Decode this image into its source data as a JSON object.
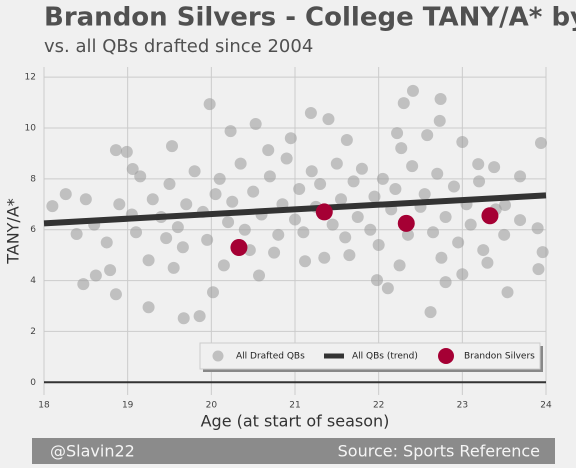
{
  "chart_data": {
    "type": "scatter",
    "title": "Brandon Silvers - College TANY/A* by Age",
    "subtitle": "vs. all QBs drafted since 2004",
    "x_label": "Age (at start of season)",
    "y_label": "TANY/A*",
    "credit": "@Slavin22",
    "source": "Source: Sports Reference",
    "xlim": [
      18,
      24
    ],
    "ylim": [
      -0.5,
      12.4
    ],
    "xticks": [
      18,
      19,
      20,
      21,
      22,
      23,
      24
    ],
    "yticks": [
      0,
      2,
      4,
      6,
      8,
      10,
      12
    ],
    "grid": true,
    "legend": "lower right",
    "series": [
      {
        "name": "All Drafted QBs",
        "type": "scatter",
        "color": "#999999",
        "x": [
          18.86,
          18.99,
          19.98,
          21.19,
          21.4,
          22.41,
          22.3,
          22.74,
          22.22,
          22.73,
          23.94,
          22.62,
          23.54,
          19.67,
          19.86,
          19.25,
          18.47,
          18.62,
          18.86,
          18.79,
          19.46,
          19.66,
          20.02,
          20.46,
          20.57,
          21.12,
          21.98,
          22.11,
          22.8,
          23.0,
          23.91,
          23.96,
          18.39,
          18.1,
          18.26,
          19.06,
          19.53,
          20.23,
          20.53,
          20.68,
          20.95,
          21.62,
          22.27,
          22.58,
          23.0,
          23.19,
          23.38,
          23.69,
          23.9,
          23.69,
          23.51,
          19.3,
          19.4,
          19.5,
          19.6,
          19.7,
          19.8,
          19.9,
          19.95,
          20.05,
          20.1,
          20.2,
          20.25,
          20.35,
          20.4,
          20.5,
          20.6,
          20.7,
          20.8,
          20.85,
          20.9,
          21.0,
          21.05,
          21.1,
          21.2,
          21.25,
          21.3,
          21.45,
          21.5,
          21.55,
          21.6,
          21.7,
          21.75,
          21.8,
          21.9,
          21.95,
          22.0,
          22.05,
          22.15,
          22.2,
          22.35,
          22.4,
          22.5,
          22.55,
          22.65,
          22.7,
          22.8,
          22.9,
          22.95,
          23.05,
          23.1,
          23.2,
          23.25,
          23.4,
          23.5,
          19.05,
          19.1,
          18.9,
          18.75,
          18.6,
          18.5,
          19.15,
          19.25,
          19.55,
          20.15,
          20.75,
          21.35,
          21.65,
          22.25,
          22.75,
          23.3
        ],
        "values": [
          9.13,
          9.06,
          10.94,
          10.59,
          10.35,
          11.46,
          10.98,
          11.14,
          9.8,
          10.28,
          9.41,
          2.76,
          3.54,
          2.52,
          2.6,
          2.95,
          3.86,
          4.2,
          3.46,
          4.41,
          5.67,
          5.31,
          3.54,
          5.2,
          4.2,
          4.76,
          4.02,
          3.7,
          3.94,
          4.25,
          4.45,
          5.12,
          5.83,
          6.93,
          7.4,
          8.39,
          9.29,
          9.88,
          10.16,
          9.13,
          9.6,
          9.53,
          9.21,
          9.72,
          9.45,
          8.58,
          8.46,
          8.1,
          6.06,
          6.38,
          6.97,
          7.2,
          6.5,
          7.8,
          6.1,
          7.0,
          8.3,
          6.7,
          5.6,
          7.4,
          8.0,
          6.3,
          7.1,
          8.6,
          6.0,
          7.5,
          6.6,
          8.1,
          5.8,
          7.0,
          8.8,
          6.4,
          7.6,
          5.9,
          8.3,
          6.9,
          7.8,
          6.2,
          8.6,
          7.2,
          5.7,
          7.9,
          6.5,
          8.4,
          6.0,
          7.3,
          5.4,
          8.0,
          6.8,
          7.6,
          5.8,
          8.5,
          6.9,
          7.4,
          5.9,
          8.2,
          6.5,
          7.7,
          5.5,
          7.0,
          6.2,
          7.9,
          5.2,
          6.8,
          5.8,
          6.6,
          5.9,
          7.0,
          5.5,
          6.2,
          7.2,
          8.1,
          4.8,
          4.5,
          4.6,
          5.1,
          4.9,
          5.0,
          4.6,
          4.9,
          4.7
        ]
      },
      {
        "name": "All QBs (trend)",
        "type": "line",
        "color": "#333333",
        "x": [
          18,
          24
        ],
        "values": [
          6.25,
          7.35
        ]
      },
      {
        "name": "Brandon Silvers",
        "type": "scatter",
        "color": "#a50034",
        "x": [
          20.33,
          21.35,
          22.33,
          23.33
        ],
        "values": [
          5.3,
          6.7,
          6.25,
          6.55
        ]
      }
    ]
  }
}
